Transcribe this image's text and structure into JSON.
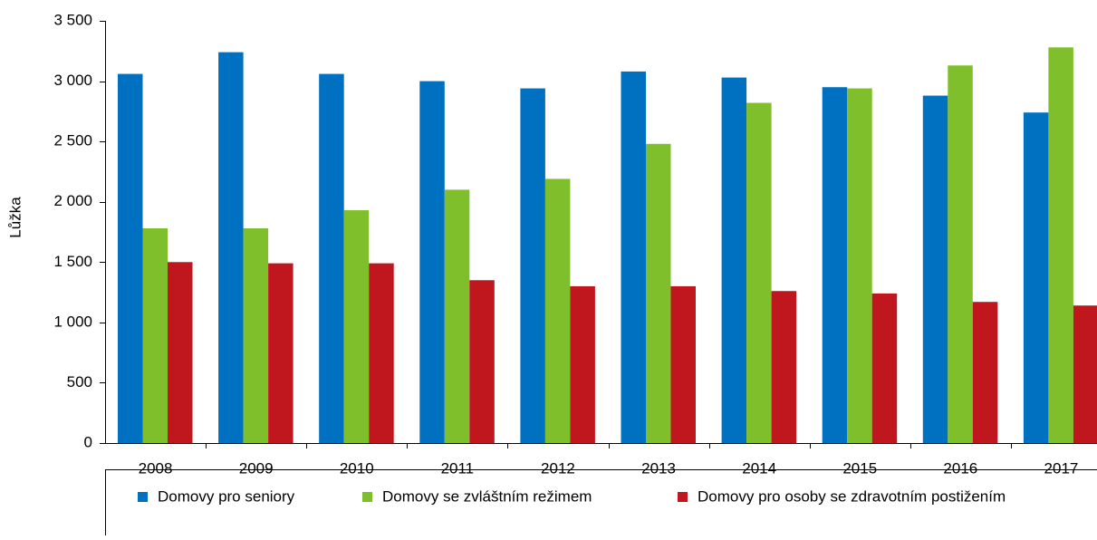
{
  "chart_data": {
    "type": "bar",
    "y_label": "Lůžka",
    "categories": [
      "2008",
      "2009",
      "2010",
      "2011",
      "2012",
      "2013",
      "2014",
      "2015",
      "2016",
      "2017"
    ],
    "series": [
      {
        "name": "Domovy pro seniory",
        "color": "#0070c0",
        "values": [
          3060,
          3240,
          3060,
          3000,
          2940,
          3080,
          3030,
          2950,
          2880,
          2740
        ]
      },
      {
        "name": "Domovy se zvláštním režimem",
        "color": "#7fbf2b",
        "values": [
          1780,
          1780,
          1930,
          2100,
          2190,
          2480,
          2820,
          2940,
          3130,
          3280
        ]
      },
      {
        "name": "Domovy pro osoby se zdravotním postižením",
        "color": "#c0171f",
        "values": [
          1500,
          1490,
          1490,
          1350,
          1300,
          1300,
          1260,
          1240,
          1170,
          1140
        ]
      }
    ],
    "ylim": [
      0,
      3500
    ],
    "yticks": [
      0,
      500,
      {
        "value": 1000,
        "label": "1 000"
      },
      {
        "value": 1500,
        "label": "1 500"
      },
      {
        "value": 2000,
        "label": "2 000"
      },
      {
        "value": 2500,
        "label": "2 500"
      },
      {
        "value": 3000,
        "label": "3 000"
      },
      {
        "value": 3500,
        "label": "3 500"
      }
    ],
    "legend": "bottom"
  }
}
